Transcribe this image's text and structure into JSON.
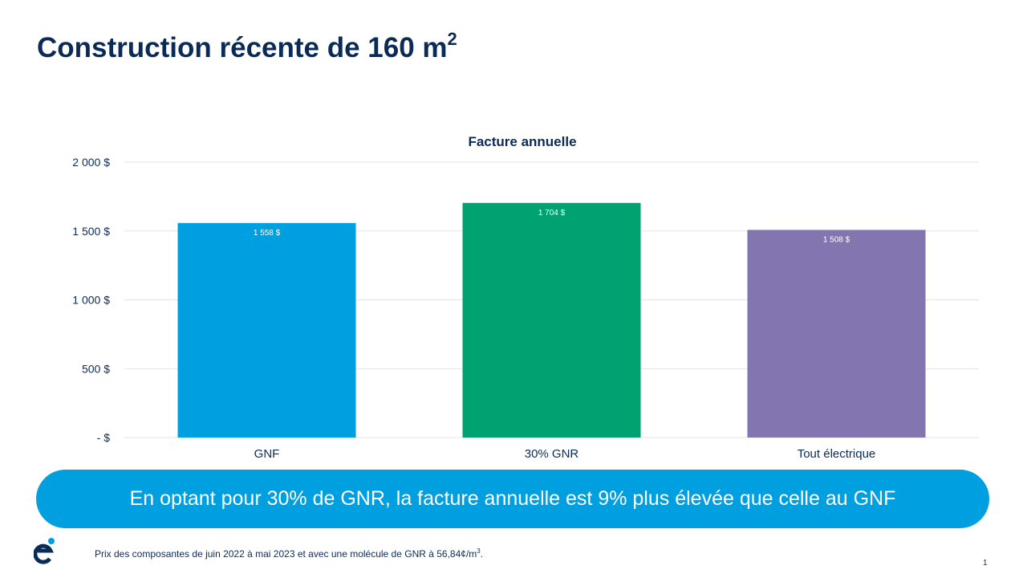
{
  "slide": {
    "title": "Construction récente de 160 m",
    "title_superscript": "2",
    "banner": "En optant pour 30% de GNR, la facture annuelle est 9% plus élevée que celle au GNF",
    "footnote": "Prix des composantes de juin 2022 à mai 2023 et avec une molécule de GNR à 56,84¢/m",
    "footnote_superscript": "3",
    "footnote_end": ".",
    "page_number": "1",
    "logo_text": "é",
    "colors": {
      "title": "#0b2b57",
      "banner": "#009fdf"
    }
  },
  "chart_data": {
    "type": "bar",
    "title": "Facture annuelle",
    "categories": [
      "GNF",
      "30% GNR",
      "Tout électrique"
    ],
    "values": [
      1558,
      1704,
      1508
    ],
    "data_labels": [
      "1 558 $",
      "1 704 $",
      "1 508 $"
    ],
    "colors": [
      "#009fdf",
      "#00a271",
      "#8275b0"
    ],
    "ylim": [
      0,
      2000
    ],
    "yticks": [
      0,
      500,
      1000,
      1500,
      2000
    ],
    "ytick_labels": [
      "-   $",
      "500  $",
      "1 000  $",
      "1 500  $",
      "2 000  $"
    ],
    "grid": true,
    "xlabel": "",
    "ylabel": ""
  }
}
